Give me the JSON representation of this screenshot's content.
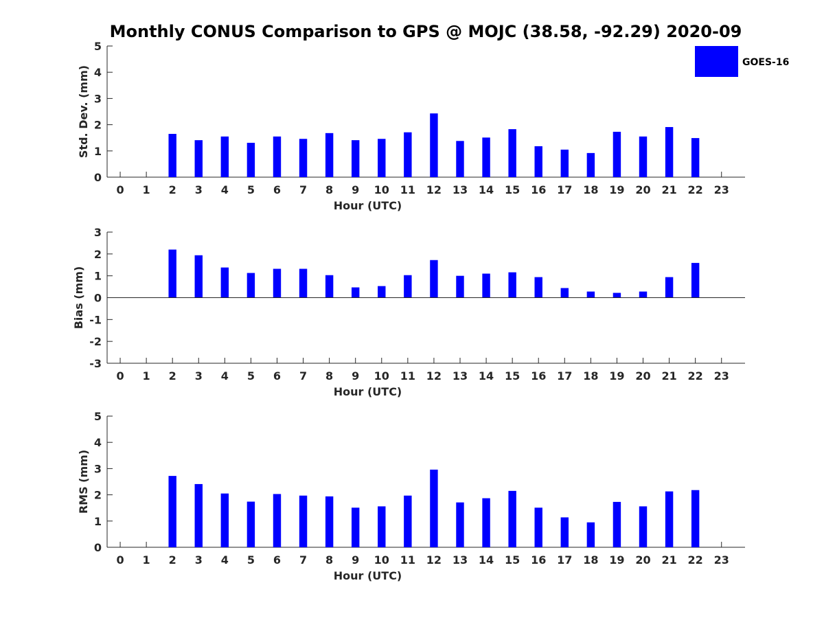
{
  "figure_title": "Monthly CONUS Comparison to GPS @ MOJC (38.58, -92.29) 2020-09",
  "legend": {
    "label": "GOES-16",
    "color": "#0000ff"
  },
  "chart_data": [
    {
      "type": "bar",
      "title": "",
      "xlabel": "Hour (UTC)",
      "ylabel": "Std. Dev. (mm)",
      "xlim": [
        -0.5,
        23.9
      ],
      "ylim": [
        0,
        5
      ],
      "yticks": [
        0,
        1,
        2,
        3,
        4,
        5
      ],
      "categories": [
        "0",
        "1",
        "2",
        "3",
        "4",
        "5",
        "6",
        "7",
        "8",
        "9",
        "10",
        "11",
        "12",
        "13",
        "14",
        "15",
        "16",
        "17",
        "18",
        "19",
        "20",
        "21",
        "22",
        "23"
      ],
      "series": [
        {
          "name": "GOES-16",
          "color": "#0000ff",
          "values": [
            null,
            null,
            1.65,
            1.41,
            1.55,
            1.31,
            1.55,
            1.46,
            1.68,
            1.41,
            1.46,
            1.71,
            2.43,
            1.38,
            1.51,
            1.83,
            1.18,
            1.05,
            0.92,
            1.73,
            1.55,
            1.91,
            1.49,
            null
          ]
        }
      ]
    },
    {
      "type": "bar",
      "title": "",
      "xlabel": "Hour (UTC)",
      "ylabel": "Bias (mm)",
      "xlim": [
        -0.5,
        23.9
      ],
      "ylim": [
        -3,
        3
      ],
      "yticks": [
        -3,
        -2,
        -1,
        0,
        1,
        2,
        3
      ],
      "zero_line": true,
      "categories": [
        "0",
        "1",
        "2",
        "3",
        "4",
        "5",
        "6",
        "7",
        "8",
        "9",
        "10",
        "11",
        "12",
        "13",
        "14",
        "15",
        "16",
        "17",
        "18",
        "19",
        "20",
        "21",
        "22",
        "23"
      ],
      "series": [
        {
          "name": "GOES-16",
          "color": "#0000ff",
          "values": [
            null,
            null,
            2.2,
            1.94,
            1.38,
            1.13,
            1.32,
            1.32,
            1.03,
            0.47,
            0.53,
            1.03,
            1.72,
            1.0,
            1.1,
            1.16,
            0.94,
            0.44,
            0.28,
            0.22,
            0.28,
            0.94,
            1.59,
            null
          ]
        }
      ]
    },
    {
      "type": "bar",
      "title": "",
      "xlabel": "Hour (UTC)",
      "ylabel": "RMS (mm)",
      "xlim": [
        -0.5,
        23.9
      ],
      "ylim": [
        0,
        5
      ],
      "yticks": [
        0,
        1,
        2,
        3,
        4,
        5
      ],
      "categories": [
        "0",
        "1",
        "2",
        "3",
        "4",
        "5",
        "6",
        "7",
        "8",
        "9",
        "10",
        "11",
        "12",
        "13",
        "14",
        "15",
        "16",
        "17",
        "18",
        "19",
        "20",
        "21",
        "22",
        "23"
      ],
      "series": [
        {
          "name": "GOES-16",
          "color": "#0000ff",
          "values": [
            null,
            null,
            2.72,
            2.41,
            2.05,
            1.74,
            2.03,
            1.97,
            1.94,
            1.51,
            1.56,
            1.97,
            2.96,
            1.71,
            1.87,
            2.15,
            1.51,
            1.14,
            0.95,
            1.73,
            1.56,
            2.13,
            2.18,
            null
          ]
        }
      ]
    }
  ]
}
